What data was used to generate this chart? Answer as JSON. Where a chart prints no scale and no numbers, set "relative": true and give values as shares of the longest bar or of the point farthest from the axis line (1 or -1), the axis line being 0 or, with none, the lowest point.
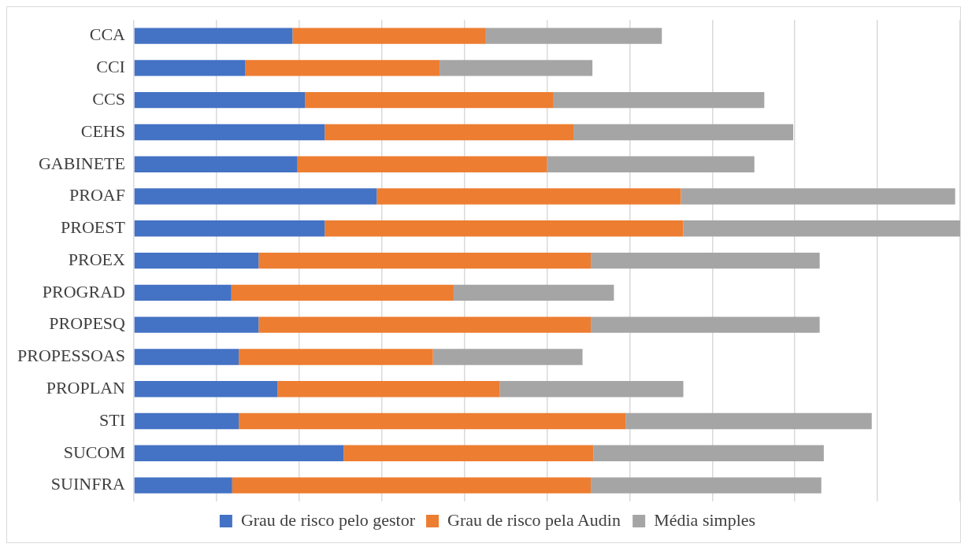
{
  "chart_data": {
    "type": "bar",
    "orientation": "horizontal",
    "stacked": true,
    "relative": true,
    "grid": "x",
    "legend": "bottom",
    "categories": [
      "CCA",
      "CCI",
      "CCS",
      "CEHS",
      "GABINETE",
      "PROAF",
      "PROEST",
      "PROEX",
      "PROGRAD",
      "PROPESQ",
      "PROPESSOAS",
      "PROPLAN",
      "STI",
      "SUCOM",
      "SUINFRA"
    ],
    "series": [
      {
        "name": "Grau de risco pelo gestor",
        "color": "#4472c4",
        "values": [
          0.192,
          0.135,
          0.207,
          0.231,
          0.198,
          0.294,
          0.231,
          0.151,
          0.118,
          0.151,
          0.127,
          0.174,
          0.127,
          0.254,
          0.119
        ]
      },
      {
        "name": "Grau de risco pela Audin",
        "color": "#ed7d31",
        "values": [
          0.234,
          0.235,
          0.301,
          0.301,
          0.302,
          0.368,
          0.434,
          0.402,
          0.269,
          0.402,
          0.235,
          0.269,
          0.468,
          0.302,
          0.434
        ]
      },
      {
        "name": "Média simples",
        "color": "#a5a5a5",
        "values": [
          0.213,
          0.185,
          0.255,
          0.266,
          0.251,
          0.332,
          0.335,
          0.277,
          0.194,
          0.277,
          0.181,
          0.222,
          0.298,
          0.279,
          0.279
        ]
      }
    ]
  }
}
